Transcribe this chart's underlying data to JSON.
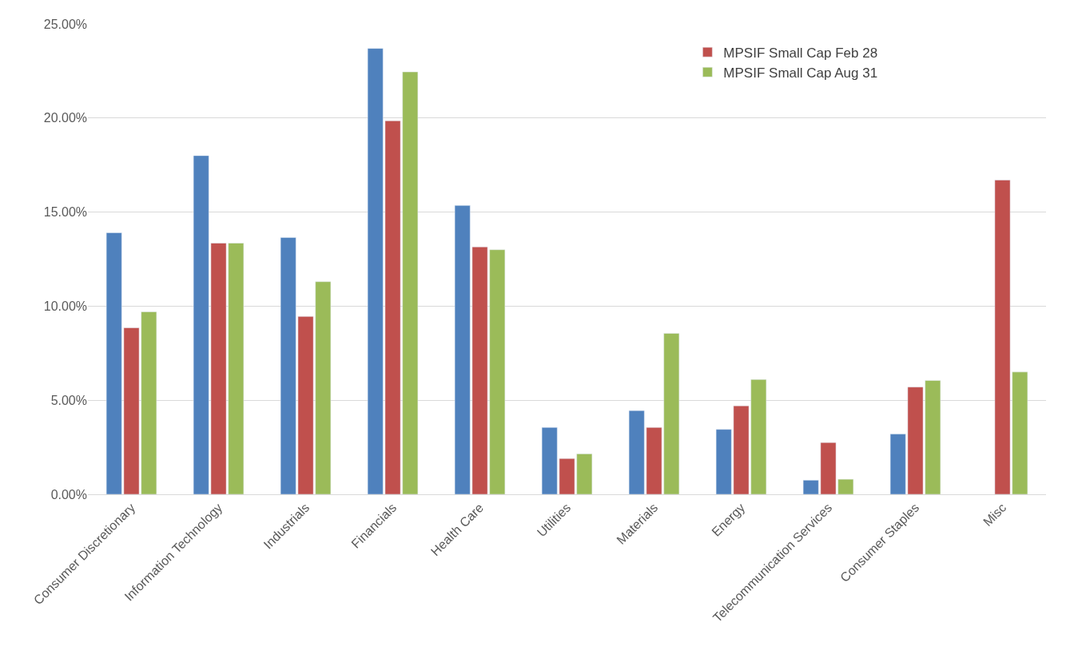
{
  "chart_data": {
    "type": "bar",
    "categories": [
      "Consumer Discretionary",
      "Information Technology",
      "Industrials",
      "Financials",
      "Health Care",
      "Utilities",
      "Materials",
      "Energy",
      "Telecommunication Services",
      "Consumer Staples",
      "Misc"
    ],
    "series": [
      {
        "color": "#4f81bd",
        "values": [
          13.9,
          18.0,
          13.65,
          23.7,
          15.35,
          3.55,
          4.45,
          3.45,
          0.75,
          3.2,
          null
        ]
      },
      {
        "name": "MPSIF Small Cap Feb 28",
        "color": "#c0504d",
        "values": [
          8.85,
          13.35,
          9.45,
          19.85,
          13.15,
          1.9,
          3.55,
          4.7,
          2.75,
          5.7,
          16.7
        ]
      },
      {
        "name": "MPSIF Small Cap Aug 31",
        "color": "#9bbb59",
        "values": [
          9.7,
          13.35,
          11.3,
          22.45,
          13.0,
          2.15,
          8.55,
          6.1,
          0.8,
          6.05,
          6.5
        ]
      }
    ],
    "ylim": [
      0,
      25
    ],
    "yticks": [
      {
        "value": 0,
        "label": "0.00%"
      },
      {
        "value": 5,
        "label": "5.00%"
      },
      {
        "value": 10,
        "label": "10.00%"
      },
      {
        "value": 15,
        "label": "15.00%"
      },
      {
        "value": 20,
        "label": "20.00%"
      },
      {
        "value": 25,
        "label": "25.00%"
      }
    ],
    "grid": "y",
    "legend": "top right"
  }
}
